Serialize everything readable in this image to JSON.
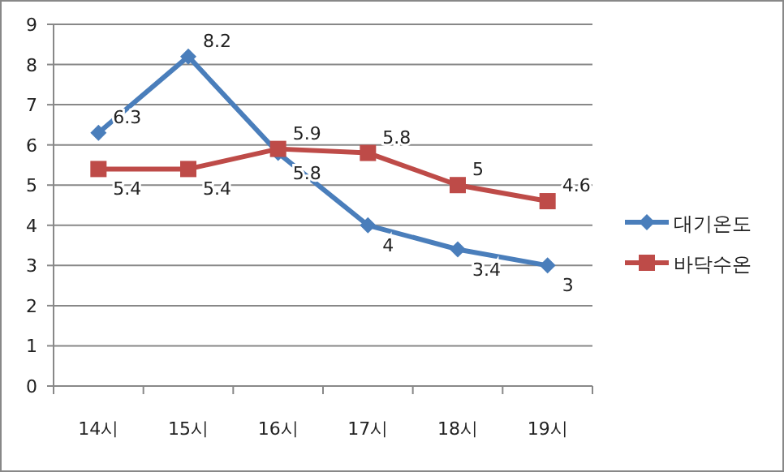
{
  "chart_data": {
    "type": "line",
    "categories": [
      "14시",
      "15시",
      "16시",
      "17시",
      "18시",
      "19시"
    ],
    "series": [
      {
        "name": "대기온도",
        "color": "#4a7ebb",
        "marker": "diamond",
        "values": [
          6.3,
          8.2,
          5.8,
          4,
          3.4,
          3
        ]
      },
      {
        "name": "바닥수온",
        "color": "#be4b48",
        "marker": "square",
        "values": [
          5.4,
          5.4,
          5.9,
          5.8,
          5,
          4.6
        ]
      }
    ],
    "ylim": [
      0,
      9
    ],
    "yticks": [
      0,
      1,
      2,
      3,
      4,
      5,
      6,
      7,
      8,
      9
    ],
    "grid": "y",
    "legend": "right",
    "data_labels": true
  }
}
